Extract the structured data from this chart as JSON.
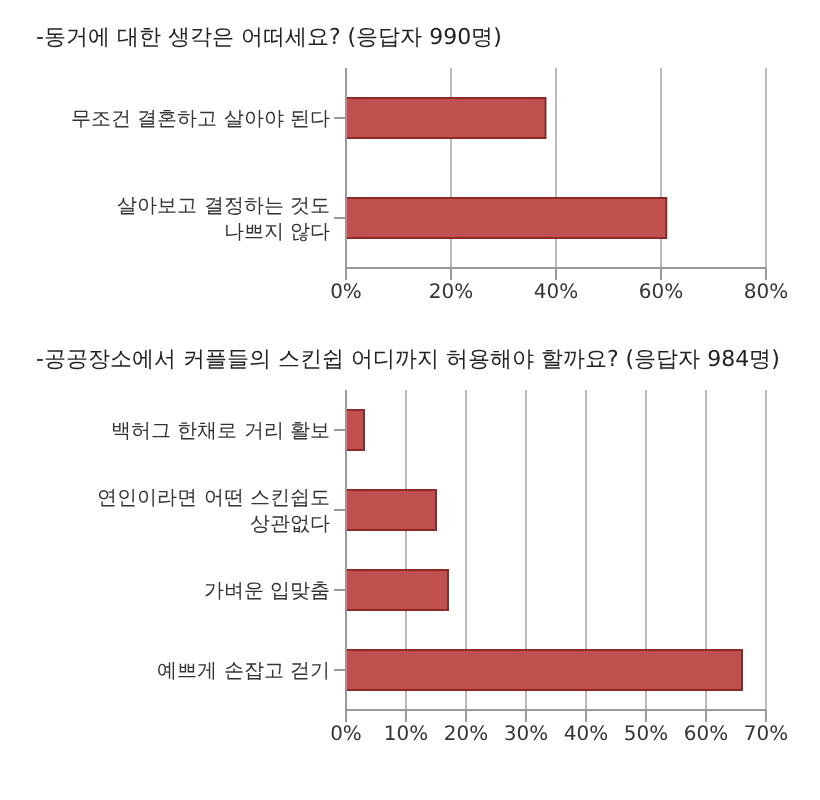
{
  "chart_data": [
    {
      "type": "bar",
      "orientation": "horizontal",
      "title": "-동거에 대한 생각은 어떠세요? (응답자 990명)",
      "categories": [
        "무조건 결혼하고 살아야 된다",
        "살아보고 결정하는 것도 나쁘지 않다"
      ],
      "values": [
        38,
        61
      ],
      "color": "#c0504d",
      "xlim": [
        0,
        80
      ],
      "xticks": [
        {
          "value": 0,
          "label": "0%"
        },
        {
          "value": 20,
          "label": "20%"
        },
        {
          "value": 40,
          "label": "40%"
        },
        {
          "value": 60,
          "label": "60%"
        },
        {
          "value": 80,
          "label": "80%"
        }
      ],
      "grid": "x"
    },
    {
      "type": "bar",
      "orientation": "horizontal",
      "title": "-공공장소에서 커플들의 스킨쉽 어디까지 허용해야 할까요? (응답자 984명)",
      "categories": [
        "백허그 한채로 거리 활보",
        "연인이라면 어떤 스킨쉽도 상관없다",
        "가벼운 입맞춤",
        "예쁘게 손잡고 걷기"
      ],
      "values": [
        3,
        15,
        17,
        66
      ],
      "color": "#c0504d",
      "xlim": [
        0,
        70
      ],
      "xticks": [
        {
          "value": 0,
          "label": "0%"
        },
        {
          "value": 10,
          "label": "10%"
        },
        {
          "value": 20,
          "label": "20%"
        },
        {
          "value": 30,
          "label": "30%"
        },
        {
          "value": 40,
          "label": "40%"
        },
        {
          "value": 50,
          "label": "50%"
        },
        {
          "value": 60,
          "label": "60%"
        },
        {
          "value": 70,
          "label": "70%"
        }
      ],
      "grid": "x"
    }
  ]
}
